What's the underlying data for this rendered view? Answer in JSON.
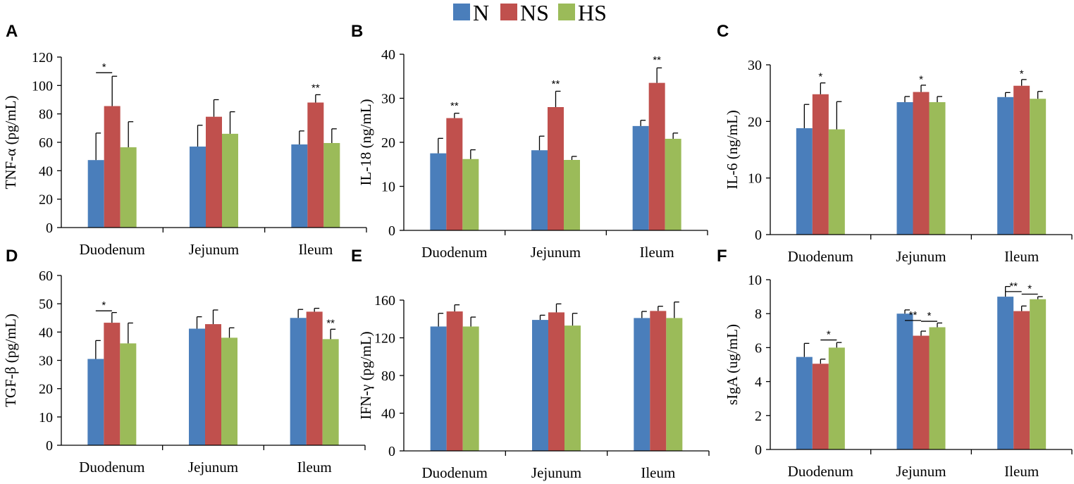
{
  "legend": [
    {
      "label": "N",
      "color": "#4a7ebb"
    },
    {
      "label": "NS",
      "color": "#c0504d"
    },
    {
      "label": "HS",
      "color": "#9bbb59"
    }
  ],
  "chart_data": [
    {
      "panel": "A",
      "type": "bar",
      "ylabel": "TNF-α (pg/mL)",
      "ylim": [
        0,
        120
      ],
      "yticks": [
        0,
        20,
        40,
        60,
        80,
        100,
        120
      ],
      "categories": [
        "Duodenum",
        "Jejunum",
        "Ileum"
      ],
      "series": [
        {
          "name": "N",
          "values": [
            47.5,
            57,
            58.5
          ],
          "errors": [
            19,
            15,
            9.5
          ]
        },
        {
          "name": "NS",
          "values": [
            85.5,
            78,
            88
          ],
          "errors": [
            21,
            12,
            5.5
          ]
        },
        {
          "name": "HS",
          "values": [
            56.5,
            66,
            59.5
          ],
          "errors": [
            18,
            15.5,
            10
          ]
        }
      ],
      "annotations": [
        {
          "label": "*",
          "type": "bracket",
          "from": [
            0,
            0
          ],
          "to": [
            0,
            1
          ],
          "y": 109
        },
        {
          "label": "**",
          "type": "above",
          "at": [
            2,
            1
          ],
          "y": 96
        }
      ]
    },
    {
      "panel": "B",
      "type": "bar",
      "ylabel": "IL-18 (ng/mL)",
      "ylim": [
        0,
        40
      ],
      "yticks": [
        0,
        10,
        20,
        30,
        40
      ],
      "categories": [
        "Duodenum",
        "Jejunum",
        "Ileum"
      ],
      "series": [
        {
          "name": "N",
          "values": [
            17.5,
            18.2,
            23.7
          ],
          "errors": [
            3.4,
            3.2,
            1.3
          ]
        },
        {
          "name": "NS",
          "values": [
            25.5,
            28,
            33.5
          ],
          "errors": [
            1.1,
            3.6,
            3.4
          ]
        },
        {
          "name": "HS",
          "values": [
            16.2,
            16,
            20.8
          ],
          "errors": [
            2.1,
            0.8,
            1.3
          ]
        }
      ],
      "annotations": [
        {
          "label": "**",
          "type": "above",
          "at": [
            0,
            1
          ],
          "y": 27.5
        },
        {
          "label": "**",
          "type": "above",
          "at": [
            1,
            1
          ],
          "y": 32.5
        },
        {
          "label": "**",
          "type": "above",
          "at": [
            2,
            1
          ],
          "y": 37.9
        }
      ]
    },
    {
      "panel": "C",
      "type": "bar",
      "ylabel": "IL-6 (ng/mL)",
      "ylim": [
        0,
        30
      ],
      "yticks": [
        0,
        10,
        20,
        30
      ],
      "categories": [
        "Duodenum",
        "Jejunum",
        "Ileum"
      ],
      "series": [
        {
          "name": "N",
          "values": [
            18.8,
            23.4,
            24.3
          ],
          "errors": [
            4.2,
            1.0,
            0.8
          ]
        },
        {
          "name": "NS",
          "values": [
            24.8,
            25.2,
            26.3
          ],
          "errors": [
            2.0,
            1.2,
            1.1
          ]
        },
        {
          "name": "HS",
          "values": [
            18.6,
            23.4,
            24.0
          ],
          "errors": [
            4.9,
            1.0,
            1.3
          ]
        }
      ],
      "annotations": [
        {
          "label": "*",
          "type": "above",
          "at": [
            0,
            1
          ],
          "y": 27.3
        },
        {
          "label": "*",
          "type": "above",
          "at": [
            1,
            1
          ],
          "y": 26.8
        },
        {
          "label": "*",
          "type": "above",
          "at": [
            2,
            1
          ],
          "y": 27.8
        }
      ]
    },
    {
      "panel": "D",
      "type": "bar",
      "ylabel": "TGF-β (pg/mL)",
      "ylim": [
        0,
        60
      ],
      "yticks": [
        0,
        10,
        20,
        30,
        40,
        50,
        60
      ],
      "categories": [
        "Duodenum",
        "Jejunum",
        "Ileum"
      ],
      "series": [
        {
          "name": "N",
          "values": [
            30.5,
            41.2,
            45
          ],
          "errors": [
            6.5,
            4.2,
            3
          ]
        },
        {
          "name": "NS",
          "values": [
            43.3,
            42.8,
            47.2
          ],
          "errors": [
            3.6,
            5,
            1.2
          ]
        },
        {
          "name": "HS",
          "values": [
            36,
            38,
            37.5
          ],
          "errors": [
            7.2,
            3.5,
            3.5
          ]
        }
      ],
      "annotations": [
        {
          "label": "*",
          "type": "bracket",
          "from": [
            0,
            0
          ],
          "to": [
            0,
            1
          ],
          "y": 47.5
        },
        {
          "label": "**",
          "type": "above",
          "at": [
            2,
            2
          ],
          "y": 42
        }
      ]
    },
    {
      "panel": "E",
      "type": "bar",
      "ylabel": "IFN-γ (pg/mL)",
      "ylim": [
        0,
        160
      ],
      "yticks": [
        0,
        40,
        80,
        120,
        160
      ],
      "categories": [
        "Duodenum",
        "Jejunum",
        "Ileum"
      ],
      "series": [
        {
          "name": "N",
          "values": [
            132,
            139,
            141
          ],
          "errors": [
            14,
            5,
            7
          ]
        },
        {
          "name": "NS",
          "values": [
            148,
            147,
            148.5
          ],
          "errors": [
            7,
            9,
            5
          ]
        },
        {
          "name": "HS",
          "values": [
            132,
            133,
            141
          ],
          "errors": [
            10,
            13,
            17
          ]
        }
      ],
      "annotations": []
    },
    {
      "panel": "F",
      "type": "bar",
      "ylabel": "sIgA (ug/mL)",
      "ylim": [
        0,
        10
      ],
      "yticks": [
        0,
        2,
        4,
        6,
        8,
        10
      ],
      "categories": [
        "Duodenum",
        "Jejunum",
        "Ileum"
      ],
      "series": [
        {
          "name": "N",
          "values": [
            5.45,
            8.0,
            9.0
          ],
          "errors": [
            0.8,
            0.22,
            0.6
          ]
        },
        {
          "name": "NS",
          "values": [
            5.05,
            6.7,
            8.15
          ],
          "errors": [
            0.27,
            0.27,
            0.3
          ]
        },
        {
          "name": "HS",
          "values": [
            6.0,
            7.2,
            8.85
          ],
          "errors": [
            0.3,
            0.25,
            0.15
          ]
        }
      ],
      "annotations": [
        {
          "label": "*",
          "type": "bracket",
          "from": [
            0,
            1
          ],
          "to": [
            0,
            2
          ],
          "y": 6.45
        },
        {
          "label": "**",
          "type": "bracket",
          "from": [
            1,
            0
          ],
          "to": [
            1,
            1
          ],
          "y": 7.6
        },
        {
          "label": "*",
          "type": "bracket",
          "from": [
            1,
            1
          ],
          "to": [
            1,
            2
          ],
          "y": 7.55
        },
        {
          "label": "**",
          "type": "bracket",
          "from": [
            2,
            0
          ],
          "to": [
            2,
            1
          ],
          "y": 9.3
        },
        {
          "label": "*",
          "type": "bracket",
          "from": [
            2,
            1
          ],
          "to": [
            2,
            2
          ],
          "y": 9.15
        }
      ]
    }
  ]
}
